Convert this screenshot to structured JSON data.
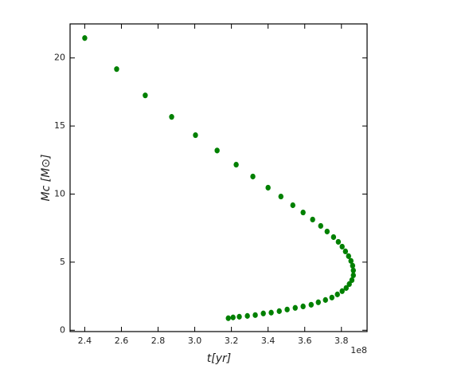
{
  "chart_data": {
    "type": "scatter",
    "xlabel": "t[yr]",
    "ylabel": "Mc [M⊙]",
    "x_offset_label": "1e8",
    "xlim": [
      2.32,
      3.94
    ],
    "ylim": [
      -0.1,
      22.5
    ],
    "xticks": [
      2.4,
      2.6,
      2.8,
      {
        "value": 3.0,
        "label": "3.0"
      },
      3.2,
      3.4,
      3.6,
      3.8
    ],
    "yticks": [
      0,
      5,
      10,
      15,
      20
    ],
    "grid": false,
    "series": [
      {
        "color": "#008000",
        "x": [
          2.4,
          2.574,
          2.73,
          2.874,
          3.004,
          3.122,
          3.226,
          3.317,
          3.4,
          3.47,
          3.535,
          3.591,
          3.643,
          3.687,
          3.722,
          3.757,
          3.783,
          3.804,
          3.822,
          3.839,
          3.852,
          3.861,
          3.865,
          3.865,
          3.857,
          3.843,
          3.826,
          3.804,
          3.778,
          3.748,
          3.713,
          3.674,
          3.635,
          3.591,
          3.548,
          3.504,
          3.461,
          3.417,
          3.374,
          3.33,
          3.287,
          3.243,
          3.209,
          3.183
        ],
        "values": [
          21.46,
          19.18,
          17.25,
          15.67,
          14.33,
          13.2,
          12.16,
          11.29,
          10.47,
          9.82,
          9.18,
          8.65,
          8.13,
          7.66,
          7.25,
          6.84,
          6.49,
          6.14,
          5.79,
          5.44,
          5.09,
          4.74,
          4.39,
          4.03,
          3.68,
          3.39,
          3.1,
          2.87,
          2.63,
          2.4,
          2.22,
          2.05,
          1.87,
          1.75,
          1.64,
          1.52,
          1.4,
          1.29,
          1.23,
          1.11,
          1.05,
          0.99,
          0.94,
          0.88
        ]
      }
    ]
  }
}
